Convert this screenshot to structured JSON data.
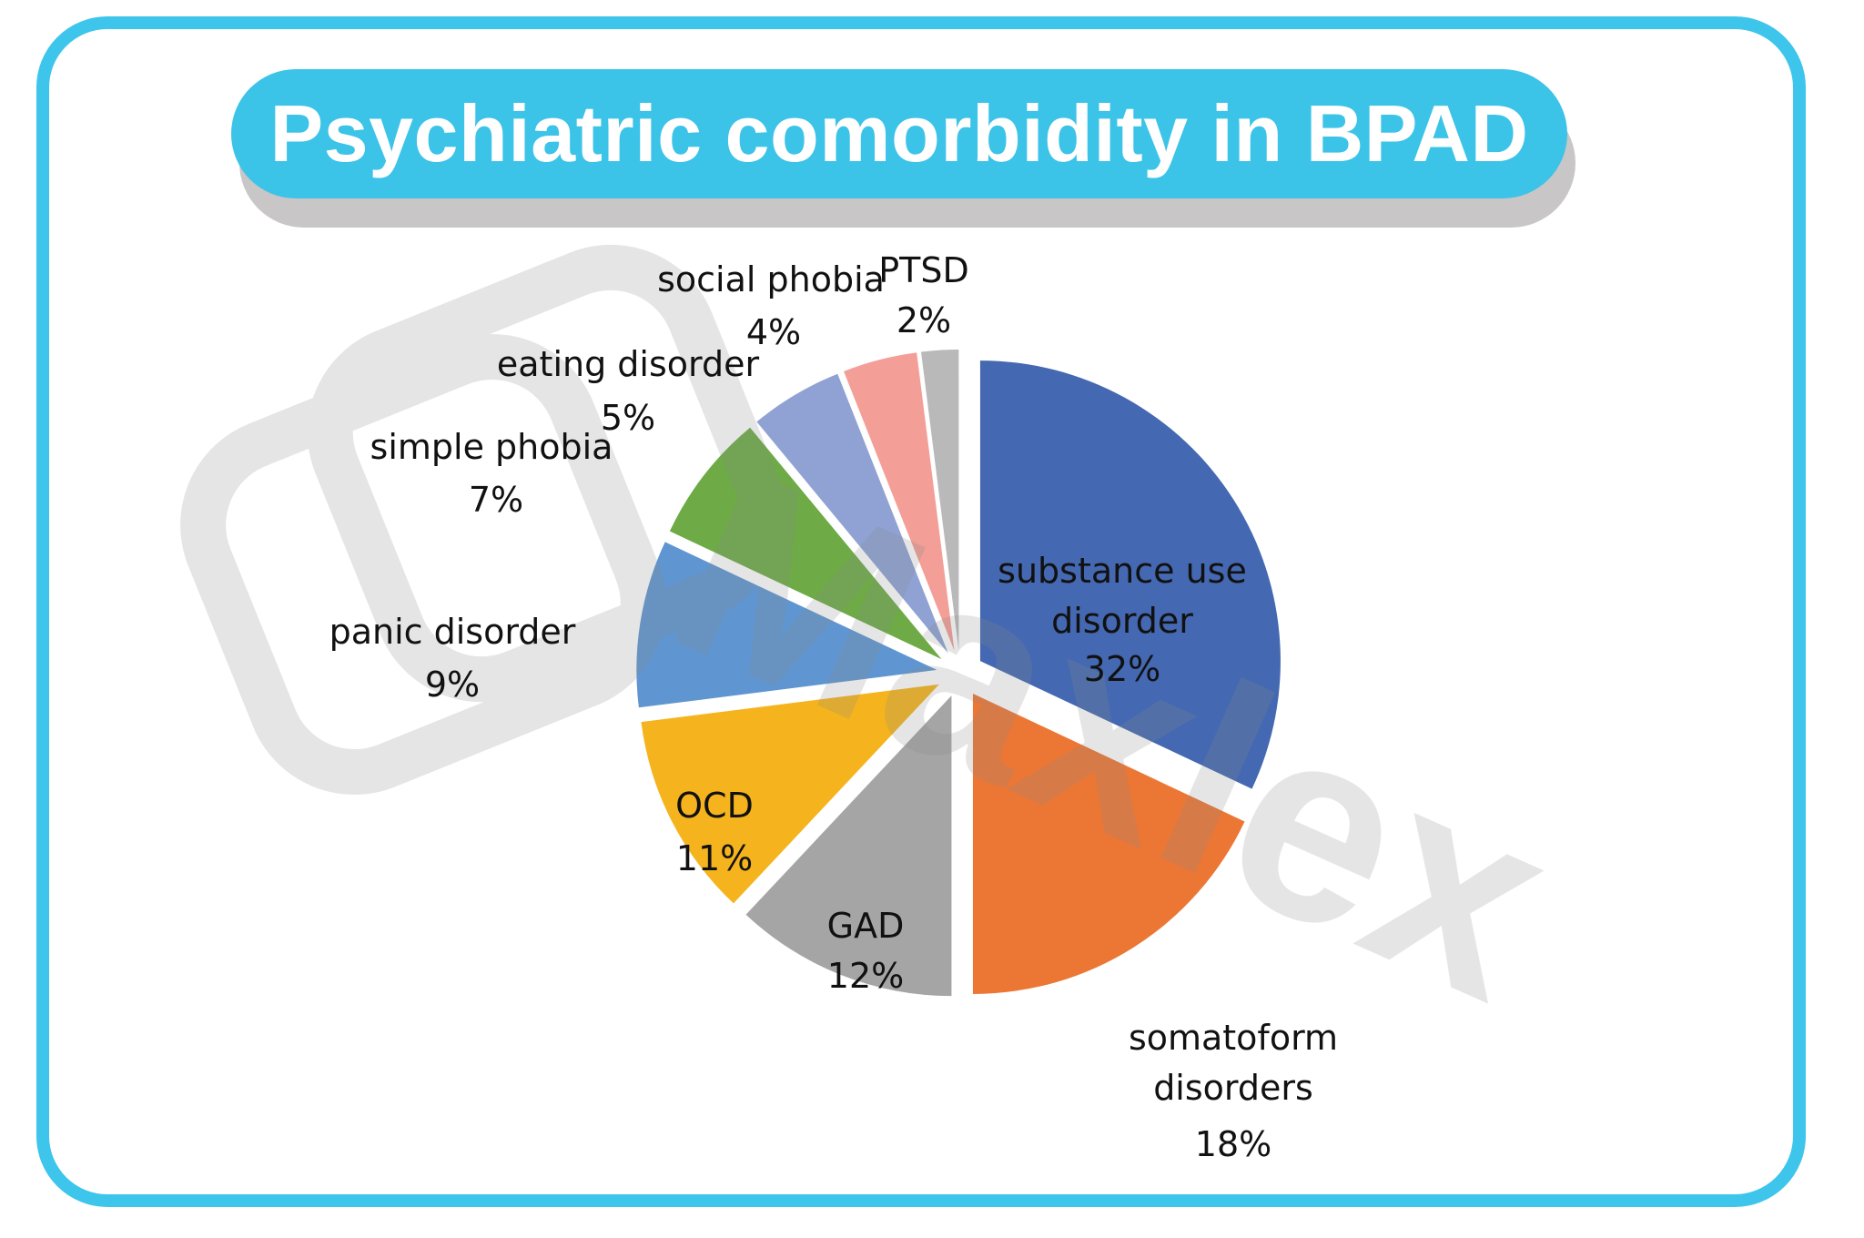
{
  "title": "Psychiatric comorbidity in BPAD",
  "chart_data": {
    "type": "pie",
    "title": "Psychiatric comorbidity in BPAD",
    "slices": [
      {
        "label": "substance use disorder",
        "value": 32,
        "value_label": "32%",
        "color": "#4468b1"
      },
      {
        "label": "somatoform disorders",
        "value": 18,
        "value_label": "18%",
        "color": "#ec7735"
      },
      {
        "label": "GAD",
        "value": 12,
        "value_label": "12%",
        "color": "#a5a5a5"
      },
      {
        "label": "OCD",
        "value": 11,
        "value_label": "11%",
        "color": "#f5b41d"
      },
      {
        "label": "panic disorder",
        "value": 9,
        "value_label": "9%",
        "color": "#5f96d1"
      },
      {
        "label": "simple phobia",
        "value": 7,
        "value_label": "7%",
        "color": "#6eab46"
      },
      {
        "label": "eating disorder",
        "value": 5,
        "value_label": "5%",
        "color": "#8fa2d3"
      },
      {
        "label": "social phobia",
        "value": 4,
        "value_label": "4%",
        "color": "#f39e97"
      },
      {
        "label": "PTSD",
        "value": 2,
        "value_label": "2%",
        "color": "#b9b9b9"
      }
    ]
  },
  "watermark": {
    "text": "Maxlex",
    "icon": "logo-mark-icon"
  }
}
